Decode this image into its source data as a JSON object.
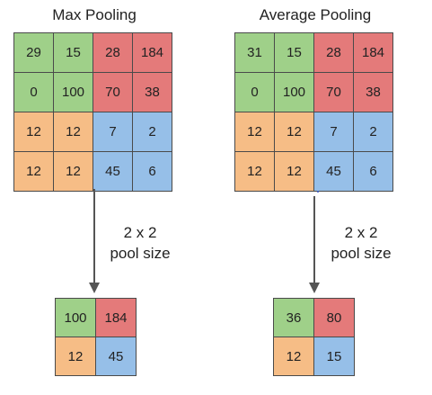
{
  "colors": {
    "green": "#9fd089",
    "red": "#e47a7a",
    "orange": "#f6bd86",
    "blue": "#96bfe8"
  },
  "max_pooling": {
    "title": "Max Pooling",
    "input": [
      [
        "29",
        "15",
        "28",
        "184"
      ],
      [
        "0",
        "100",
        "70",
        "38"
      ],
      [
        "12",
        "12",
        "7",
        "2"
      ],
      [
        "12",
        "12",
        "45",
        "6"
      ]
    ],
    "pool_label_line1": "2 x 2",
    "pool_label_line2": "pool size",
    "output": [
      [
        "100",
        "184"
      ],
      [
        "12",
        "45"
      ]
    ]
  },
  "average_pooling": {
    "title": "Average Pooling",
    "input": [
      [
        "31",
        "15",
        "28",
        "184"
      ],
      [
        "0",
        "100",
        "70",
        "38"
      ],
      [
        "12",
        "12",
        "7",
        "2"
      ],
      [
        "12",
        "12",
        "45",
        "6"
      ]
    ],
    "pool_label_line1": "2 x 2",
    "pool_label_line2": "pool size",
    "output": [
      [
        "36",
        "80"
      ],
      [
        "12",
        "15"
      ]
    ]
  }
}
